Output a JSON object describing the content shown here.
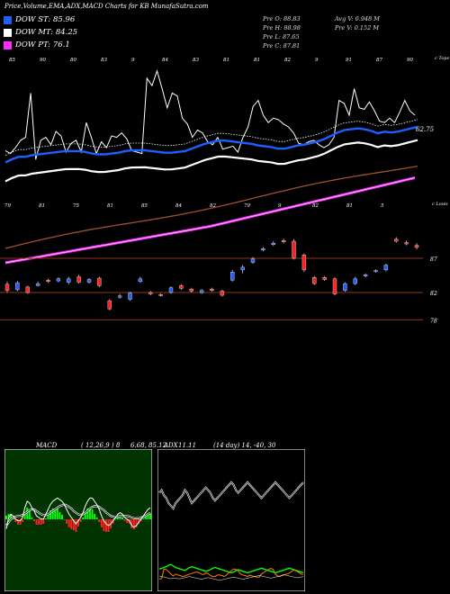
{
  "header": {
    "title": "Price,Volume,EMA,ADX,MACD Charts for KB MunafaSutra.com"
  },
  "legend": [
    {
      "label": "DOW ST: 85.96",
      "color": "#1f5fff"
    },
    {
      "label": "DOW MT: 84.25",
      "color": "#ffffff"
    },
    {
      "label": "DOW PT: 76.1",
      "color": "#ff2cff"
    }
  ],
  "stats": {
    "prev_open": "Pre O: 88.83",
    "prev_high": "Pre H: 88.98",
    "prev_low": "Pre L: 87.65",
    "prev_close": "Pre C: 87.81",
    "avg_volume": "Avg V: 0.948 M",
    "prev_volume": "Pre V: 0.152 M"
  },
  "colors": {
    "up": "#1f5fff",
    "down": "#ff2020",
    "magenta": "#ff2cff",
    "ema_brown": "#a0522d",
    "bg": "#000000"
  },
  "chart_data": [
    {
      "type": "line",
      "name": "price-volume-ema",
      "top_labels": [
        "85",
        "90",
        "80",
        "83",
        "9",
        "84",
        "83",
        "81",
        "81",
        "82",
        "9",
        "91",
        "87",
        "90"
      ],
      "top_right_label": "c Tops",
      "mid_labels": [
        "79",
        "81",
        "75",
        "81",
        "85",
        "84",
        "82",
        "79",
        "9",
        "82",
        "81",
        "5"
      ],
      "mid_right_label": "c Lows",
      "ema_label": "62.75",
      "levels": [
        87,
        82,
        78
      ],
      "volume_line": [
        52,
        48,
        56,
        66,
        70,
        130,
        40,
        66,
        70,
        60,
        78,
        72,
        50,
        62,
        66,
        50,
        90,
        70,
        48,
        64,
        56,
        72,
        70,
        76,
        68,
        52,
        50,
        48,
        150,
        140,
        160,
        136,
        110,
        130,
        126,
        96,
        88,
        70,
        80,
        76,
        64,
        60,
        70,
        54,
        56,
        58,
        50,
        70,
        84,
        112,
        120,
        100,
        90,
        96,
        94,
        88,
        84,
        76,
        62,
        60,
        64,
        66,
        60,
        56,
        60,
        70,
        120,
        116,
        100,
        136,
        110,
        108,
        118,
        106,
        92,
        90,
        96,
        90,
        104,
        120,
        106,
        100
      ],
      "candles": [
        {
          "o": 83.2,
          "c": 82.3,
          "h": 83.6,
          "l": 82.0,
          "up": false
        },
        {
          "o": 82.4,
          "c": 83.4,
          "h": 83.7,
          "l": 82.2,
          "up": true
        },
        {
          "o": 82.8,
          "c": 82.0,
          "h": 83.0,
          "l": 81.8,
          "up": false
        },
        {
          "o": 83.0,
          "c": 83.3,
          "h": 83.6,
          "l": 82.9,
          "up": true
        },
        {
          "o": 83.8,
          "c": 83.6,
          "h": 84.0,
          "l": 83.4,
          "up": false
        },
        {
          "o": 83.7,
          "c": 84.0,
          "h": 84.2,
          "l": 83.5,
          "up": true
        },
        {
          "o": 83.5,
          "c": 84.0,
          "h": 84.3,
          "l": 83.2,
          "up": true
        },
        {
          "o": 84.3,
          "c": 83.5,
          "h": 84.6,
          "l": 83.3,
          "up": false
        },
        {
          "o": 83.5,
          "c": 83.9,
          "h": 84.1,
          "l": 83.3,
          "up": true
        },
        {
          "o": 84.1,
          "c": 83.0,
          "h": 84.3,
          "l": 82.8,
          "up": false
        },
        {
          "o": 80.8,
          "c": 79.6,
          "h": 81.0,
          "l": 79.4,
          "up": false
        },
        {
          "o": 81.3,
          "c": 81.5,
          "h": 81.8,
          "l": 81.1,
          "up": true
        },
        {
          "o": 81.0,
          "c": 81.9,
          "h": 82.1,
          "l": 80.8,
          "up": true
        },
        {
          "o": 83.6,
          "c": 84.0,
          "h": 84.3,
          "l": 83.4,
          "up": true
        },
        {
          "o": 82.0,
          "c": 81.8,
          "h": 82.2,
          "l": 81.6,
          "up": false
        },
        {
          "o": 81.7,
          "c": 81.6,
          "h": 81.9,
          "l": 81.4,
          "up": false
        },
        {
          "o": 82.0,
          "c": 82.7,
          "h": 82.9,
          "l": 81.8,
          "up": true
        },
        {
          "o": 83.0,
          "c": 82.6,
          "h": 83.2,
          "l": 82.4,
          "up": false
        },
        {
          "o": 82.5,
          "c": 82.2,
          "h": 82.7,
          "l": 82.0,
          "up": false
        },
        {
          "o": 82.0,
          "c": 82.3,
          "h": 82.5,
          "l": 81.8,
          "up": true
        },
        {
          "o": 82.5,
          "c": 82.3,
          "h": 82.7,
          "l": 82.1,
          "up": false
        },
        {
          "o": 82.2,
          "c": 81.6,
          "h": 82.4,
          "l": 81.4,
          "up": false
        },
        {
          "o": 83.8,
          "c": 85.0,
          "h": 85.3,
          "l": 83.6,
          "up": true
        },
        {
          "o": 85.3,
          "c": 85.7,
          "h": 86.0,
          "l": 84.8,
          "up": true
        },
        {
          "o": 86.4,
          "c": 86.9,
          "h": 87.2,
          "l": 86.2,
          "up": true
        },
        {
          "o": 88.2,
          "c": 88.4,
          "h": 88.6,
          "l": 88.0,
          "up": true
        },
        {
          "o": 89.0,
          "c": 89.2,
          "h": 89.5,
          "l": 88.8,
          "up": true
        },
        {
          "o": 89.6,
          "c": 89.4,
          "h": 89.9,
          "l": 89.2,
          "up": false
        },
        {
          "o": 89.5,
          "c": 87.0,
          "h": 89.8,
          "l": 86.8,
          "up": false
        },
        {
          "o": 87.5,
          "c": 85.3,
          "h": 87.7,
          "l": 85.0,
          "up": false
        },
        {
          "o": 84.2,
          "c": 83.3,
          "h": 84.4,
          "l": 83.1,
          "up": false
        },
        {
          "o": 84.2,
          "c": 83.9,
          "h": 84.4,
          "l": 83.7,
          "up": false
        },
        {
          "o": 84.0,
          "c": 81.8,
          "h": 84.2,
          "l": 81.6,
          "up": false
        },
        {
          "o": 82.3,
          "c": 83.3,
          "h": 83.5,
          "l": 82.1,
          "up": true
        },
        {
          "o": 83.3,
          "c": 84.0,
          "h": 84.3,
          "l": 83.1,
          "up": true
        },
        {
          "o": 84.4,
          "c": 84.6,
          "h": 84.8,
          "l": 84.2,
          "up": true
        },
        {
          "o": 85.1,
          "c": 85.2,
          "h": 85.4,
          "l": 84.9,
          "up": true
        },
        {
          "o": 85.3,
          "c": 86.0,
          "h": 86.2,
          "l": 85.1,
          "up": true
        },
        {
          "o": 89.8,
          "c": 89.5,
          "h": 90.1,
          "l": 89.3,
          "up": false
        },
        {
          "o": 89.3,
          "c": 89.1,
          "h": 89.6,
          "l": 88.9,
          "up": false
        },
        {
          "o": 88.9,
          "c": 88.6,
          "h": 89.2,
          "l": 88.3,
          "up": false
        }
      ],
      "ema_fast": [
        87.5,
        87.9,
        88.2,
        88.2,
        88.4,
        88.5,
        88.6,
        88.7,
        88.8,
        88.9,
        88.9,
        88.9,
        88.8,
        88.6,
        88.5,
        88.5,
        88.6,
        88.7,
        88.9,
        89.0,
        89.0,
        89.0,
        88.9,
        88.8,
        88.7,
        88.7,
        88.8,
        88.9,
        89.2,
        89.5,
        89.8,
        90.0,
        90.2,
        90.2,
        90.1,
        90.0,
        89.9,
        89.8,
        89.6,
        89.5,
        89.4,
        89.2,
        89.2,
        89.4,
        89.6,
        89.7,
        89.9,
        90.1,
        90.4,
        90.8,
        91.2,
        91.5,
        91.6,
        91.7,
        91.6,
        91.4,
        91.1,
        91.3,
        91.2,
        91.3,
        91.5,
        91.7,
        91.9
      ]
    },
    {
      "type": "line",
      "name": "macd",
      "title": "MACD",
      "params": "( 12,26,9 ) 8",
      "readout": "6.68, 85.12",
      "series_a": [
        46,
        60,
        64,
        62,
        58,
        56,
        56,
        60,
        72,
        80,
        78,
        72,
        68,
        62,
        60,
        58,
        58,
        64,
        70,
        76,
        80,
        82,
        84,
        82,
        80,
        76,
        70,
        64,
        60,
        56,
        52,
        56,
        60,
        66,
        74,
        80,
        84,
        84,
        80,
        76,
        70,
        62,
        56,
        52,
        50,
        52,
        56,
        60,
        64,
        66,
        64,
        60,
        58,
        56,
        50,
        48,
        50,
        54,
        58,
        62,
        66,
        70,
        72
      ],
      "series_b": [
        50,
        54,
        58,
        60,
        61,
        62,
        62,
        63,
        65,
        67,
        69,
        70,
        70,
        68,
        66,
        64,
        63,
        63,
        64,
        66,
        68,
        70,
        72,
        74,
        75,
        76,
        75,
        73,
        71,
        68,
        66,
        64,
        63,
        64,
        66,
        68,
        71,
        73,
        74,
        74,
        73,
        71,
        69,
        66,
        64,
        62,
        61,
        60,
        61,
        62,
        62,
        62,
        62,
        61,
        60,
        59,
        59,
        59,
        60,
        61,
        62,
        64,
        66
      ],
      "histogram": [
        4,
        6,
        6,
        2,
        -3,
        -6,
        -6,
        -3,
        7,
        13,
        9,
        2,
        -2,
        -6,
        -6,
        -6,
        -5,
        1,
        6,
        10,
        12,
        12,
        12,
        8,
        5,
        0,
        -5,
        -9,
        -11,
        -12,
        -14,
        -8,
        -3,
        2,
        8,
        12,
        13,
        11,
        6,
        2,
        -3,
        -9,
        -13,
        -14,
        -14,
        -10,
        -5,
        0,
        3,
        4,
        2,
        -2,
        -4,
        -5,
        -10,
        -11,
        -9,
        -5,
        -2,
        1,
        4,
        6,
        6
      ]
    },
    {
      "type": "line",
      "name": "adx",
      "title": "ADX",
      "params": "(14 day) 14, -40, 30",
      "readout": "11.11",
      "adx": [
        30,
        28,
        26,
        24,
        22,
        20,
        22,
        22,
        20,
        20,
        22,
        24,
        26,
        28,
        26,
        24,
        22,
        20,
        18,
        20,
        22,
        24,
        22,
        20,
        18,
        16,
        14,
        16,
        18,
        20,
        22,
        24,
        26,
        24,
        22,
        20,
        18,
        20,
        22,
        24,
        26,
        28,
        30,
        32,
        30,
        28,
        26,
        24,
        22,
        24,
        26,
        28,
        30,
        32,
        34,
        32,
        30,
        28,
        26,
        24,
        24,
        26,
        28
      ],
      "dx": [
        20,
        22,
        60,
        58,
        50,
        40,
        32,
        40,
        36,
        34,
        30,
        32,
        36,
        40,
        42,
        46,
        48,
        46,
        40,
        38,
        44,
        42,
        34,
        30,
        30,
        36,
        36,
        34,
        30,
        36,
        46,
        52,
        60,
        58,
        52,
        40,
        36,
        34,
        30,
        36,
        32,
        30,
        28,
        28,
        40,
        46,
        52,
        58,
        62,
        58,
        40,
        32,
        30,
        36,
        38,
        40,
        44,
        50,
        56,
        52,
        46,
        40,
        38
      ],
      "plus_di": [
        70,
        72,
        68,
        66,
        62,
        60,
        58,
        62,
        64,
        66,
        68,
        72,
        70,
        66,
        62,
        64,
        66,
        68,
        70,
        72,
        74,
        72,
        70,
        66,
        64,
        66,
        68,
        70,
        72,
        74,
        76,
        78,
        76,
        72,
        70,
        72,
        74,
        76,
        78,
        76,
        74,
        72,
        70,
        68,
        66,
        68,
        70,
        72,
        74,
        76,
        78,
        76,
        74,
        72,
        70,
        68,
        66,
        68,
        70,
        72,
        74,
        76,
        78
      ],
      "minus_di": [
        40,
        42,
        44,
        46,
        50,
        52,
        48,
        44,
        42,
        40,
        38,
        36,
        40,
        44,
        46,
        44,
        42,
        40,
        38,
        36,
        34,
        36,
        38,
        42,
        44,
        42,
        40,
        38,
        36,
        34,
        32,
        30,
        32,
        36,
        38,
        36,
        34,
        32,
        30,
        32,
        34,
        36,
        38,
        40,
        42,
        40,
        38,
        36,
        34,
        32,
        30,
        32,
        34,
        36,
        38,
        40,
        42,
        40,
        38,
        36,
        34,
        32,
        30
      ]
    }
  ]
}
